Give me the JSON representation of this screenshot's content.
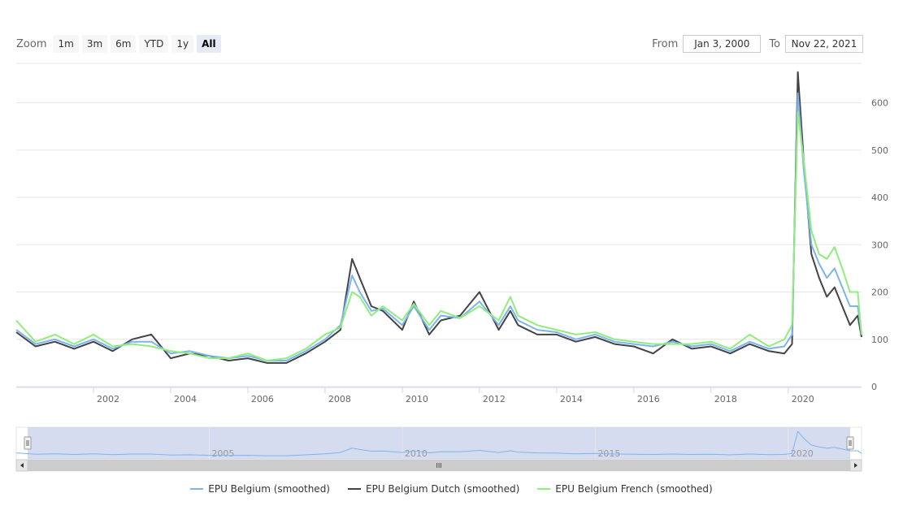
{
  "zoom": {
    "label": "Zoom",
    "buttons": [
      "1m",
      "3m",
      "6m",
      "YTD",
      "1y",
      "All"
    ],
    "active": "All"
  },
  "range": {
    "from_label": "From",
    "from_value": "Jan 3, 2000",
    "to_label": "To",
    "to_value": "Nov 22, 2021"
  },
  "colors": {
    "belgium": "#7cb5ec",
    "dutch": "#434348",
    "french": "#90ed7d",
    "navigator_fill": "#cfd6ec",
    "scrollbar": "#cccccc"
  },
  "navigator": {
    "labels": [
      "2005",
      "2010",
      "2015",
      "2020"
    ],
    "scrollbar_glyph": "III"
  },
  "chart_data": {
    "type": "line",
    "title": "",
    "xlabel": "",
    "ylabel": "",
    "xlim": [
      2000.0,
      2021.9
    ],
    "ylim": [
      0,
      680
    ],
    "x_ticks": [
      "2002",
      "2004",
      "2006",
      "2008",
      "2010",
      "2012",
      "2014",
      "2016",
      "2018",
      "2020"
    ],
    "y_ticks": [
      "0",
      "100",
      "200",
      "300",
      "400",
      "500",
      "600"
    ],
    "legend_position": "bottom-center",
    "grid": true,
    "x": [
      2000.0,
      2000.5,
      2001.0,
      2001.5,
      2002.0,
      2002.5,
      2003.0,
      2003.5,
      2004.0,
      2004.5,
      2005.0,
      2005.5,
      2006.0,
      2006.5,
      2007.0,
      2007.5,
      2008.0,
      2008.4,
      2008.7,
      2008.9,
      2009.2,
      2009.5,
      2010.0,
      2010.3,
      2010.7,
      2011.0,
      2011.5,
      2012.0,
      2012.5,
      2012.8,
      2013.0,
      2013.5,
      2014.0,
      2014.5,
      2015.0,
      2015.5,
      2016.0,
      2016.5,
      2017.0,
      2017.5,
      2018.0,
      2018.5,
      2019.0,
      2019.5,
      2019.9,
      2020.1,
      2020.25,
      2020.4,
      2020.6,
      2020.8,
      2021.0,
      2021.2,
      2021.4,
      2021.6,
      2021.8,
      2021.9
    ],
    "series": [
      {
        "name": "EPU Belgium (smoothed)",
        "values": [
          120,
          90,
          100,
          85,
          100,
          80,
          95,
          95,
          70,
          75,
          65,
          60,
          65,
          55,
          55,
          75,
          100,
          130,
          235,
          200,
          160,
          165,
          130,
          170,
          120,
          150,
          145,
          180,
          130,
          170,
          140,
          120,
          115,
          100,
          110,
          95,
          90,
          85,
          95,
          85,
          90,
          75,
          95,
          80,
          85,
          110,
          620,
          460,
          300,
          260,
          230,
          250,
          210,
          170,
          170,
          110
        ]
      },
      {
        "name": "EPU Belgium Dutch (smoothed)",
        "values": [
          115,
          85,
          95,
          80,
          95,
          75,
          100,
          110,
          60,
          70,
          65,
          55,
          60,
          50,
          50,
          70,
          95,
          120,
          270,
          230,
          170,
          160,
          120,
          180,
          110,
          140,
          150,
          200,
          120,
          160,
          130,
          110,
          110,
          95,
          105,
          90,
          85,
          70,
          100,
          80,
          85,
          70,
          90,
          75,
          70,
          90,
          665,
          480,
          280,
          230,
          190,
          210,
          170,
          130,
          150,
          105
        ]
      },
      {
        "name": "EPU Belgium French (smoothed)",
        "values": [
          140,
          95,
          110,
          90,
          110,
          85,
          90,
          85,
          75,
          70,
          60,
          60,
          70,
          55,
          60,
          80,
          110,
          125,
          200,
          190,
          150,
          170,
          140,
          175,
          130,
          160,
          145,
          170,
          140,
          190,
          150,
          130,
          120,
          110,
          115,
          100,
          95,
          90,
          90,
          90,
          95,
          80,
          110,
          85,
          100,
          130,
          580,
          480,
          330,
          280,
          270,
          295,
          250,
          200,
          200,
          110
        ]
      }
    ]
  },
  "legend": {
    "items": [
      "EPU Belgium (smoothed)",
      "EPU Belgium Dutch (smoothed)",
      "EPU Belgium French (smoothed)"
    ]
  }
}
